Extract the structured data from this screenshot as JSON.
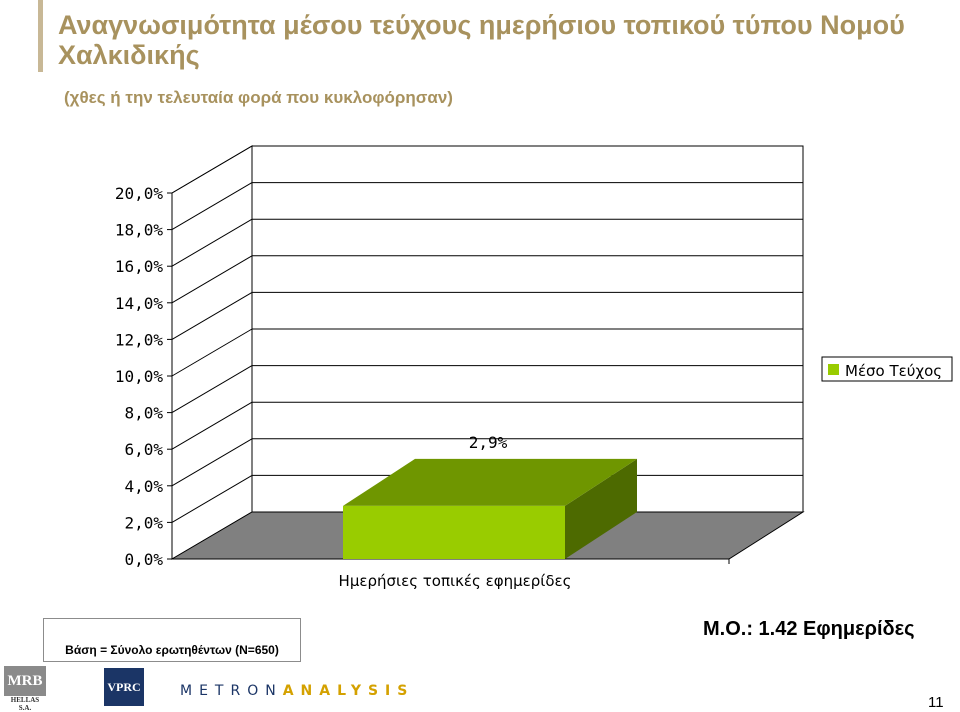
{
  "slide": {
    "title": "Αναγνωσιμότητα μέσου τεύχους ημερήσιου τοπικού τύπου Νομού Χαλκιδικής",
    "subtitle": "(χθες ή την τελευταία φορά που κυκλοφόρησαν)",
    "base_note": "Βάση = Σύνολο ερωτηθέντων (N=650)",
    "mean_note": "Μ.Ο.: 1.42 Εφημερίδες",
    "page_number": "11"
  },
  "logos": {
    "mrb_text": "MRB",
    "mrb_sub": "HELLAS S.A.",
    "vprc_text": "VPRC",
    "metron_part1": "METRON",
    "metron_part2": "ANALYSIS"
  },
  "colors": {
    "title": "#a8925e",
    "bar_front": "#99cc00",
    "bar_top": "#6f9600",
    "bar_side": "#4d6a00",
    "floor": "#808080"
  },
  "chart_data": {
    "type": "bar",
    "categories": [
      "Ημερήσιες τοπικές εφημερίδες"
    ],
    "series": [
      {
        "name": "Μέσο Τεύχος",
        "values": [
          2.9
        ]
      }
    ],
    "data_labels": [
      "2,9%"
    ],
    "y_ticks": [
      "0,0%",
      "2,0%",
      "4,0%",
      "6,0%",
      "8,0%",
      "10,0%",
      "12,0%",
      "14,0%",
      "16,0%",
      "18,0%",
      "20,0%"
    ],
    "ylim": [
      0,
      20
    ],
    "legend": "right",
    "grid": true,
    "three_d": true
  }
}
